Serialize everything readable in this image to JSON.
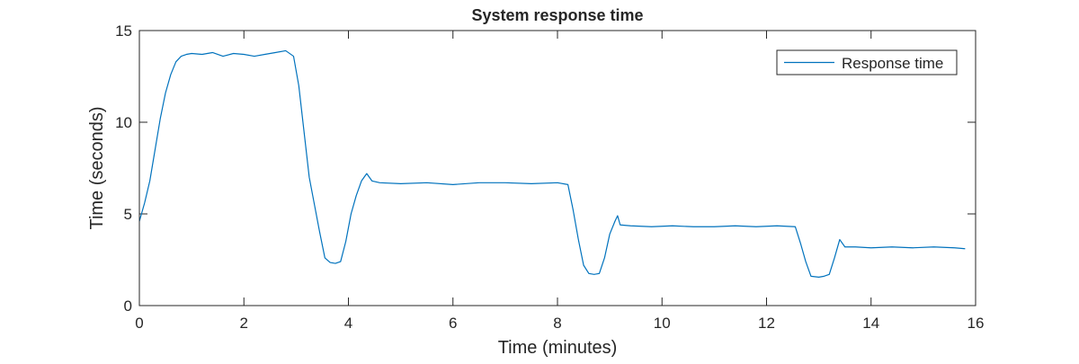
{
  "chart_data": {
    "type": "line",
    "title": "System response time",
    "xlabel": "Time (minutes)",
    "ylabel": "Time (seconds)",
    "xlim": [
      0,
      16
    ],
    "ylim": [
      0,
      15
    ],
    "xticks": [
      0,
      2,
      4,
      6,
      8,
      10,
      12,
      14,
      16
    ],
    "yticks": [
      0,
      5,
      10,
      15
    ],
    "grid": false,
    "legend": "top-right",
    "line_color": "#0072BD",
    "series": [
      {
        "name": "Response time",
        "x": [
          0,
          0.1,
          0.2,
          0.3,
          0.4,
          0.5,
          0.6,
          0.7,
          0.8,
          0.9,
          1.0,
          1.2,
          1.4,
          1.6,
          1.8,
          2.0,
          2.2,
          2.4,
          2.6,
          2.8,
          2.95,
          3.05,
          3.15,
          3.25,
          3.35,
          3.45,
          3.55,
          3.65,
          3.75,
          3.85,
          3.95,
          4.05,
          4.15,
          4.25,
          4.35,
          4.45,
          4.6,
          5.0,
          5.5,
          6.0,
          6.5,
          7.0,
          7.5,
          8.0,
          8.2,
          8.3,
          8.4,
          8.5,
          8.6,
          8.7,
          8.8,
          8.9,
          9.0,
          9.1,
          9.15,
          9.2,
          9.4,
          9.8,
          10.2,
          10.6,
          11.0,
          11.4,
          11.8,
          12.2,
          12.55,
          12.65,
          12.75,
          12.85,
          13.0,
          13.1,
          13.2,
          13.3,
          13.4,
          13.5,
          13.7,
          14.0,
          14.4,
          14.8,
          15.2,
          15.6,
          15.8
        ],
        "y": [
          4.6,
          5.6,
          6.8,
          8.5,
          10.2,
          11.6,
          12.6,
          13.3,
          13.6,
          13.7,
          13.75,
          13.7,
          13.8,
          13.6,
          13.75,
          13.7,
          13.6,
          13.7,
          13.8,
          13.9,
          13.6,
          12.0,
          9.5,
          7.0,
          5.5,
          4.0,
          2.6,
          2.35,
          2.3,
          2.4,
          3.5,
          5.0,
          6.0,
          6.8,
          7.2,
          6.8,
          6.7,
          6.65,
          6.7,
          6.6,
          6.7,
          6.7,
          6.65,
          6.7,
          6.6,
          5.2,
          3.6,
          2.2,
          1.75,
          1.7,
          1.75,
          2.6,
          3.9,
          4.6,
          4.9,
          4.4,
          4.35,
          4.3,
          4.35,
          4.3,
          4.3,
          4.35,
          4.3,
          4.35,
          4.3,
          3.4,
          2.4,
          1.6,
          1.55,
          1.6,
          1.7,
          2.6,
          3.6,
          3.2,
          3.2,
          3.15,
          3.2,
          3.15,
          3.2,
          3.15,
          3.1
        ]
      }
    ]
  }
}
